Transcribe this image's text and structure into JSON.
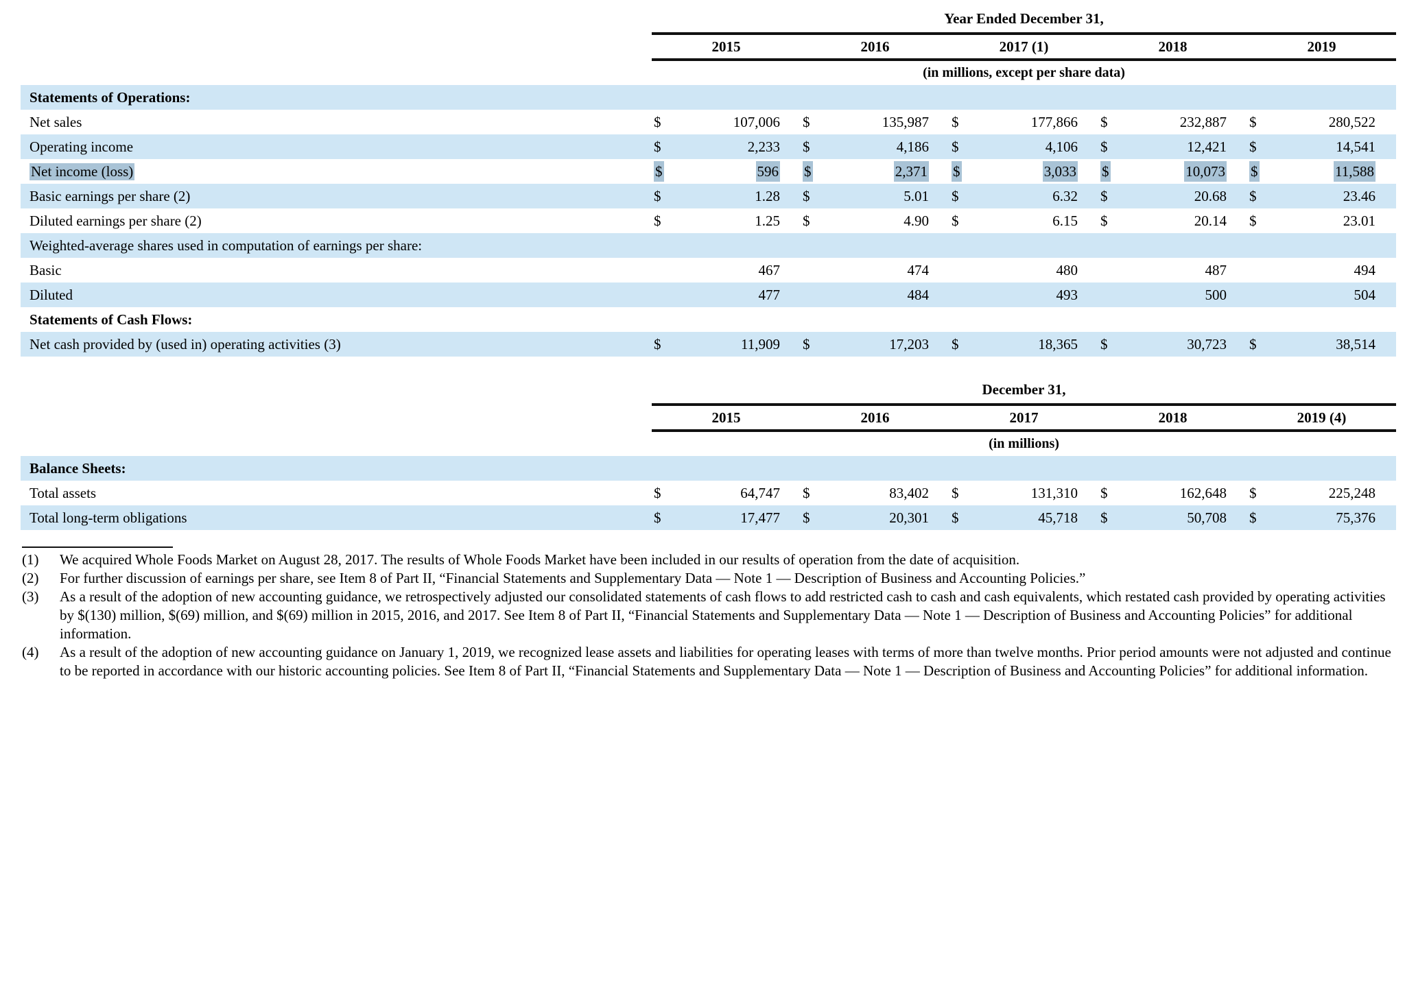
{
  "colors": {
    "stripe": "#cfe6f5",
    "selection": "#a9c3d6",
    "rule": "#111111"
  },
  "table_operations": {
    "title": "Year Ended December 31,",
    "years": [
      "2015",
      "2016",
      "2017 (1)",
      "2018",
      "2019"
    ],
    "units_note": "(in millions, except per share data)",
    "rows": [
      {
        "kind": "section",
        "bold": true,
        "shade": true,
        "label": "Statements of Operations:"
      },
      {
        "kind": "data",
        "dollar": true,
        "shade": false,
        "label": "Net sales",
        "values": [
          "107,006",
          "135,987",
          "177,866",
          "232,887",
          "280,522"
        ]
      },
      {
        "kind": "data",
        "dollar": true,
        "shade": true,
        "label": "Operating income",
        "values": [
          "2,233",
          "4,186",
          "4,106",
          "12,421",
          "14,541"
        ]
      },
      {
        "kind": "data",
        "dollar": true,
        "shade": false,
        "selected": true,
        "label": "Net income (loss)",
        "values": [
          "596",
          "2,371",
          "3,033",
          "10,073",
          "11,588"
        ]
      },
      {
        "kind": "data",
        "dollar": true,
        "shade": true,
        "label": "Basic earnings per share (2)",
        "values": [
          "1.28",
          "5.01",
          "6.32",
          "20.68",
          "23.46"
        ]
      },
      {
        "kind": "data",
        "dollar": true,
        "shade": false,
        "label": "Diluted earnings per share (2)",
        "values": [
          "1.25",
          "4.90",
          "6.15",
          "20.14",
          "23.01"
        ]
      },
      {
        "kind": "section",
        "bold": false,
        "shade": true,
        "label": "Weighted-average shares used in computation of earnings per share:"
      },
      {
        "kind": "data",
        "dollar": false,
        "shade": false,
        "label": "Basic",
        "values": [
          "467",
          "474",
          "480",
          "487",
          "494"
        ]
      },
      {
        "kind": "data",
        "dollar": false,
        "shade": true,
        "label": "Diluted",
        "values": [
          "477",
          "484",
          "493",
          "500",
          "504"
        ]
      },
      {
        "kind": "section",
        "bold": true,
        "shade": false,
        "label": "Statements of Cash Flows:"
      },
      {
        "kind": "data",
        "dollar": true,
        "shade": true,
        "label": "Net cash provided by (used in) operating activities (3)",
        "values": [
          "11,909",
          "17,203",
          "18,365",
          "30,723",
          "38,514"
        ]
      }
    ]
  },
  "table_balance": {
    "title": "December 31,",
    "years": [
      "2015",
      "2016",
      "2017",
      "2018",
      "2019 (4)"
    ],
    "units_note": "(in millions)",
    "rows": [
      {
        "kind": "section",
        "bold": true,
        "shade": true,
        "label": "Balance Sheets:"
      },
      {
        "kind": "data",
        "dollar": true,
        "shade": false,
        "label": "Total assets",
        "values": [
          "64,747",
          "83,402",
          "131,310",
          "162,648",
          "225,248"
        ]
      },
      {
        "kind": "data",
        "dollar": true,
        "shade": true,
        "label": "Total long-term obligations",
        "values": [
          "17,477",
          "20,301",
          "45,718",
          "50,708",
          "75,376"
        ]
      }
    ]
  },
  "dollar_sign": "$",
  "footnotes": [
    {
      "marker": "(1)",
      "text": "We acquired Whole Foods Market on August 28, 2017. The results of Whole Foods Market have been included in our results of operation from the date of acquisition."
    },
    {
      "marker": "(2)",
      "text": "For further discussion of earnings per share, see Item 8 of Part II, “Financial Statements and Supplementary Data — Note 1 — Description of Business and Accounting Policies.”"
    },
    {
      "marker": "(3)",
      "text": "As a result of the adoption of new accounting guidance, we retrospectively adjusted our consolidated statements of cash flows to add restricted cash to cash and cash equivalents, which restated cash provided by operating activities by $(130) million, $(69) million, and $(69) million in 2015, 2016, and 2017. See Item 8 of Part II, “Financial Statements and Supplementary Data — Note 1 — Description of Business and Accounting Policies” for additional information."
    },
    {
      "marker": "(4)",
      "text": "As a result of the adoption of new accounting guidance on January 1, 2019, we recognized lease assets and liabilities for operating leases with terms of more than twelve months. Prior period amounts were not adjusted and continue to be reported in accordance with our historic accounting policies. See Item 8 of Part II, “Financial Statements and Supplementary Data — Note 1 — Description of Business and Accounting Policies” for additional information."
    }
  ]
}
